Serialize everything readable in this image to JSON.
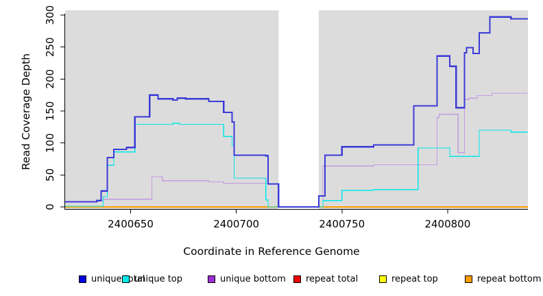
{
  "chart_data": {
    "type": "line",
    "title": "",
    "xlabel": "Coordinate in Reference Genome",
    "ylabel": "Read Coverage Depth",
    "xlim": [
      2400619,
      2400838
    ],
    "ylim": [
      0,
      300
    ],
    "x_ticks": [
      2400650,
      2400700,
      2400750,
      2400800
    ],
    "y_ticks": [
      0,
      50,
      100,
      150,
      200,
      250,
      300
    ],
    "grid": false,
    "plot_bg": "#dcdcdc",
    "gap_region": {
      "start": 2400720,
      "end": 2400739,
      "color": "#ffffff",
      "draw_after": "repeat bottom"
    },
    "step_mode": "after",
    "series": [
      {
        "name": "repeat total",
        "color": "#ee0000",
        "width": 1,
        "points": [
          [
            2400619,
            0
          ]
        ]
      },
      {
        "name": "repeat top",
        "color": "#ffff00",
        "width": 1,
        "points": [
          [
            2400619,
            0
          ]
        ]
      },
      {
        "name": "repeat bottom",
        "color": "#ff9e00",
        "width": 1.6,
        "points": [
          [
            2400619,
            0
          ]
        ]
      },
      {
        "name": "unique bottom",
        "color": "#c49ae0",
        "width": 1.2,
        "points": [
          [
            2400619,
            8
          ],
          [
            2400634,
            10
          ],
          [
            2400637,
            12
          ],
          [
            2400660,
            47
          ],
          [
            2400665,
            41
          ],
          [
            2400687,
            39
          ],
          [
            2400694,
            37
          ],
          [
            2400715,
            36
          ],
          [
            2400720,
            0
          ],
          [
            2400741,
            64
          ],
          [
            2400765,
            66
          ],
          [
            2400795,
            140
          ],
          [
            2400796,
            145
          ],
          [
            2400805,
            85
          ],
          [
            2400808,
            168
          ],
          [
            2400810,
            170
          ],
          [
            2400814,
            174
          ],
          [
            2400821,
            178
          ]
        ]
      },
      {
        "name": "unique top",
        "color": "#00e8e8",
        "width": 1.2,
        "points": [
          [
            2400619,
            1
          ],
          [
            2400637,
            16
          ],
          [
            2400639,
            65
          ],
          [
            2400642,
            86
          ],
          [
            2400652,
            129
          ],
          [
            2400670,
            131
          ],
          [
            2400673,
            129
          ],
          [
            2400694,
            110
          ],
          [
            2400698,
            96
          ],
          [
            2400699,
            45
          ],
          [
            2400714,
            11
          ],
          [
            2400715,
            0
          ],
          [
            2400741,
            10
          ],
          [
            2400750,
            26
          ],
          [
            2400765,
            27
          ],
          [
            2400786,
            92
          ],
          [
            2400801,
            79
          ],
          [
            2400815,
            120
          ],
          [
            2400830,
            117
          ]
        ]
      },
      {
        "name": "unique total",
        "color": "#3a3ad8",
        "width": 2.2,
        "points": [
          [
            2400619,
            8
          ],
          [
            2400634,
            10
          ],
          [
            2400636,
            25
          ],
          [
            2400639,
            77
          ],
          [
            2400642,
            90
          ],
          [
            2400648,
            93
          ],
          [
            2400652,
            141
          ],
          [
            2400659,
            175
          ],
          [
            2400663,
            169
          ],
          [
            2400670,
            167
          ],
          [
            2400672,
            170
          ],
          [
            2400676,
            169
          ],
          [
            2400687,
            165
          ],
          [
            2400694,
            148
          ],
          [
            2400698,
            133
          ],
          [
            2400699,
            81
          ],
          [
            2400714,
            80
          ],
          [
            2400715,
            36
          ],
          [
            2400720,
            0
          ],
          [
            2400739,
            17
          ],
          [
            2400742,
            81
          ],
          [
            2400750,
            94
          ],
          [
            2400765,
            97
          ],
          [
            2400784,
            158
          ],
          [
            2400795,
            236
          ],
          [
            2400801,
            220
          ],
          [
            2400804,
            155
          ],
          [
            2400808,
            241
          ],
          [
            2400809,
            249
          ],
          [
            2400812,
            240
          ],
          [
            2400815,
            272
          ],
          [
            2400820,
            297
          ],
          [
            2400830,
            294
          ]
        ]
      }
    ],
    "legend": {
      "position": "bottom",
      "items": [
        {
          "label": "unique total",
          "color": "#0202dd"
        },
        {
          "label": "unique top",
          "color": "#00e8e8"
        },
        {
          "label": "unique bottom",
          "color": "#9d2fd2"
        },
        {
          "label": "repeat total",
          "color": "#ee0000"
        },
        {
          "label": "repeat top",
          "color": "#ffff00"
        },
        {
          "label": "repeat bottom",
          "color": "#ff9e00"
        }
      ]
    }
  }
}
